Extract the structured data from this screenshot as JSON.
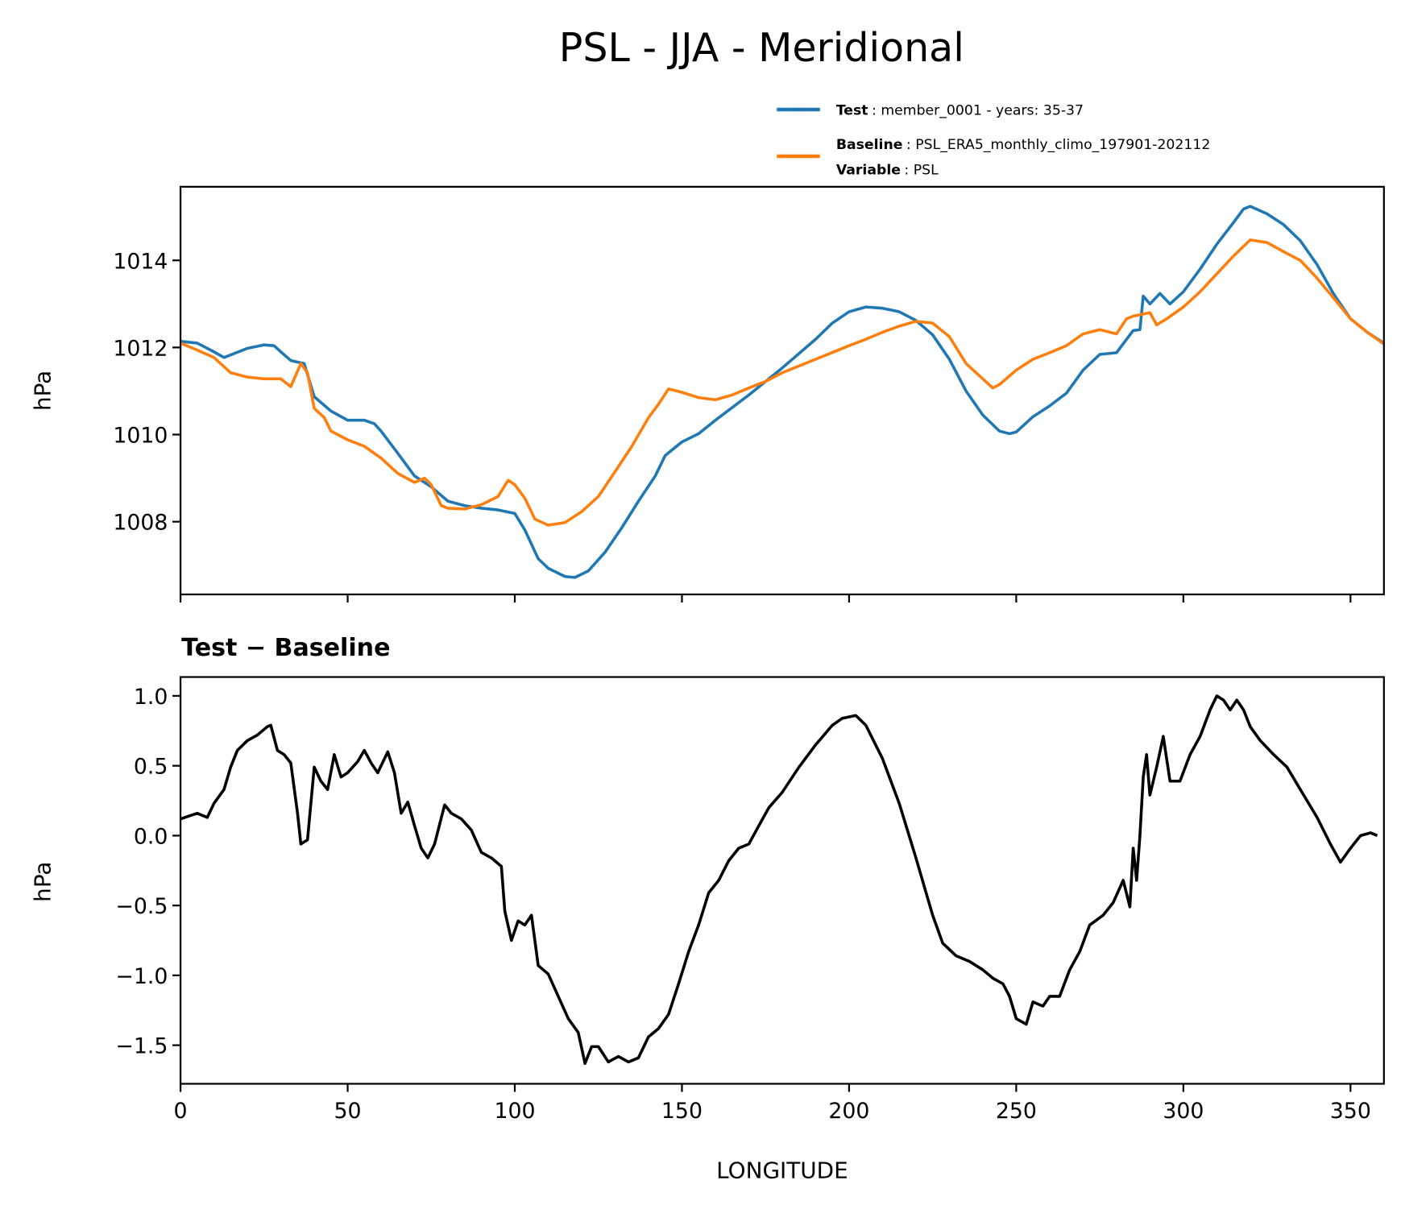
{
  "title": "PSL - JJA - Meridional",
  "colors": {
    "test": "#1f77b4",
    "baseline": "#ff7f0e",
    "diff": "#000000"
  },
  "legend": {
    "test_label": "Test",
    "test_value": ": member_0001 - years: 35-37",
    "baseline_label": "Baseline",
    "baseline_value": ": PSL_ERA5_monthly_climo_197901-202112",
    "variable_label": "Variable",
    "variable_value": ": PSL"
  },
  "chart_data": [
    {
      "type": "line",
      "title": "",
      "xlabel": "",
      "ylabel": "hPa",
      "xlim": [
        0,
        360
      ],
      "ylim": [
        1006.33,
        1015.69
      ],
      "xticks": [
        0,
        50,
        100,
        150,
        200,
        250,
        300,
        350
      ],
      "yticks": [
        1008,
        1010,
        1012,
        1014
      ],
      "ytick_labels": [
        "1008",
        "1010",
        "1012",
        "1014"
      ],
      "legend_placement": "above-top-right",
      "series": [
        {
          "name": "Test",
          "color_key": "test",
          "x": [
            0,
            5,
            10,
            13,
            20,
            25,
            28,
            30,
            33,
            37,
            40,
            45,
            50,
            55,
            58,
            60,
            65,
            70,
            75,
            80,
            85,
            90,
            95,
            100,
            103,
            107,
            110,
            115,
            118,
            122,
            127,
            132,
            137,
            142,
            145,
            150,
            155,
            160,
            170,
            180,
            190,
            195,
            200,
            205,
            210,
            215,
            220,
            225,
            230,
            235,
            240,
            245,
            248,
            250,
            255,
            260,
            265,
            270,
            275,
            280,
            285,
            287,
            288,
            290,
            293,
            296,
            300,
            305,
            310,
            315,
            318,
            320,
            325,
            330,
            335,
            340,
            345,
            350,
            355,
            360
          ],
          "y": [
            1012.14,
            1012.1,
            1011.9,
            1011.77,
            1011.98,
            1012.06,
            1012.04,
            1011.9,
            1011.7,
            1011.63,
            1010.87,
            1010.54,
            1010.33,
            1010.33,
            1010.25,
            1010.08,
            1009.57,
            1009.05,
            1008.8,
            1008.47,
            1008.37,
            1008.31,
            1008.27,
            1008.19,
            1007.81,
            1007.15,
            1006.93,
            1006.74,
            1006.72,
            1006.87,
            1007.3,
            1007.86,
            1008.47,
            1009.05,
            1009.52,
            1009.83,
            1010.02,
            1010.33,
            1010.91,
            1011.53,
            1012.19,
            1012.56,
            1012.82,
            1012.93,
            1012.9,
            1012.82,
            1012.62,
            1012.29,
            1011.73,
            1011.0,
            1010.45,
            1010.08,
            1010.02,
            1010.06,
            1010.41,
            1010.66,
            1010.95,
            1011.48,
            1011.84,
            1011.88,
            1012.39,
            1012.41,
            1013.18,
            1013.0,
            1013.24,
            1013.0,
            1013.28,
            1013.8,
            1014.37,
            1014.87,
            1015.18,
            1015.24,
            1015.07,
            1014.82,
            1014.45,
            1013.9,
            1013.22,
            1012.66,
            1012.35,
            1012.1
          ]
        },
        {
          "name": "Baseline",
          "color_key": "baseline",
          "x": [
            0,
            5,
            10,
            15,
            20,
            25,
            30,
            33,
            36,
            38,
            40,
            43,
            45,
            50,
            55,
            60,
            65,
            70,
            73,
            75,
            78,
            80,
            85,
            90,
            95,
            98,
            100,
            103,
            106,
            110,
            115,
            120,
            125,
            130,
            135,
            140,
            143,
            146,
            150,
            155,
            160,
            165,
            170,
            175,
            180,
            190,
            200,
            205,
            210,
            215,
            220,
            225,
            230,
            235,
            240,
            243,
            245,
            250,
            255,
            260,
            265,
            270,
            275,
            280,
            283,
            285,
            290,
            292,
            295,
            300,
            305,
            310,
            315,
            320,
            325,
            330,
            335,
            340,
            345,
            350,
            355,
            360
          ],
          "y": [
            1012.1,
            1011.94,
            1011.77,
            1011.42,
            1011.32,
            1011.28,
            1011.28,
            1011.1,
            1011.63,
            1011.42,
            1010.6,
            1010.39,
            1010.08,
            1009.88,
            1009.73,
            1009.46,
            1009.11,
            1008.9,
            1009.0,
            1008.85,
            1008.37,
            1008.31,
            1008.29,
            1008.39,
            1008.58,
            1008.95,
            1008.85,
            1008.54,
            1008.06,
            1007.92,
            1007.98,
            1008.23,
            1008.58,
            1009.15,
            1009.73,
            1010.39,
            1010.7,
            1011.05,
            1010.97,
            1010.85,
            1010.8,
            1010.91,
            1011.07,
            1011.22,
            1011.42,
            1011.73,
            1012.04,
            1012.19,
            1012.35,
            1012.49,
            1012.6,
            1012.56,
            1012.25,
            1011.63,
            1011.28,
            1011.07,
            1011.15,
            1011.48,
            1011.73,
            1011.88,
            1012.04,
            1012.31,
            1012.41,
            1012.31,
            1012.66,
            1012.72,
            1012.8,
            1012.52,
            1012.66,
            1012.93,
            1013.28,
            1013.69,
            1014.1,
            1014.47,
            1014.41,
            1014.2,
            1014.0,
            1013.59,
            1013.13,
            1012.66,
            1012.35,
            1012.08
          ]
        }
      ]
    },
    {
      "type": "line",
      "title": "Test − Baseline",
      "xlabel": "LONGITUDE",
      "ylabel": "hPa",
      "xlim": [
        0,
        360
      ],
      "ylim": [
        -1.776,
        1.135
      ],
      "xticks": [
        0,
        50,
        100,
        150,
        200,
        250,
        300,
        350
      ],
      "xtick_labels": [
        "0",
        "50",
        "100",
        "150",
        "200",
        "250",
        "300",
        "350"
      ],
      "yticks": [
        1.0,
        0.5,
        0.0,
        -0.5,
        -1.0,
        -1.5
      ],
      "ytick_labels": [
        "1.0",
        "0.5",
        "0.0",
        "−0.5",
        "−1.0",
        "−1.5"
      ],
      "series": [
        {
          "name": "Test - Baseline",
          "color_key": "diff",
          "x": [
            0,
            5,
            8,
            10,
            13,
            15,
            17,
            20,
            23,
            26,
            27,
            29,
            31,
            33,
            35,
            36,
            38,
            40,
            42,
            44,
            46,
            48,
            50,
            53,
            55,
            57,
            59,
            62,
            64,
            66,
            68,
            70,
            72,
            74,
            76,
            79,
            81,
            84,
            87,
            90,
            93,
            96,
            97,
            99,
            101,
            103,
            105,
            107,
            110,
            113,
            116,
            119,
            121,
            123,
            125,
            128,
            131,
            134,
            137,
            140,
            143,
            146,
            149,
            152,
            155,
            158,
            161,
            164,
            167,
            170,
            173,
            176,
            180,
            185,
            190,
            195,
            198,
            202,
            205,
            210,
            215,
            220,
            225,
            228,
            232,
            236,
            240,
            243,
            246,
            248,
            250,
            253,
            255,
            258,
            260,
            263,
            266,
            269,
            272,
            276,
            279,
            282,
            284,
            285,
            286,
            287,
            288,
            289,
            290,
            292,
            294,
            296,
            299,
            302,
            305,
            308,
            310,
            312,
            314,
            316,
            318,
            320,
            323,
            327,
            331,
            335,
            340,
            344,
            347,
            350,
            353,
            356,
            358
          ],
          "y": [
            0.12,
            0.16,
            0.13,
            0.23,
            0.33,
            0.49,
            0.61,
            0.68,
            0.72,
            0.78,
            0.79,
            0.61,
            0.58,
            0.52,
            0.16,
            -0.06,
            -0.03,
            0.49,
            0.39,
            0.33,
            0.58,
            0.42,
            0.45,
            0.53,
            0.61,
            0.52,
            0.45,
            0.6,
            0.45,
            0.16,
            0.24,
            0.07,
            -0.09,
            -0.16,
            -0.06,
            0.22,
            0.16,
            0.12,
            0.04,
            -0.12,
            -0.16,
            -0.22,
            -0.54,
            -0.75,
            -0.61,
            -0.64,
            -0.57,
            -0.93,
            -0.99,
            -1.15,
            -1.31,
            -1.41,
            -1.63,
            -1.51,
            -1.51,
            -1.62,
            -1.58,
            -1.62,
            -1.59,
            -1.44,
            -1.38,
            -1.28,
            -1.06,
            -0.83,
            -0.64,
            -0.41,
            -0.32,
            -0.18,
            -0.09,
            -0.06,
            0.07,
            0.2,
            0.31,
            0.49,
            0.65,
            0.79,
            0.84,
            0.86,
            0.79,
            0.55,
            0.23,
            -0.16,
            -0.57,
            -0.77,
            -0.86,
            -0.9,
            -0.96,
            -1.02,
            -1.06,
            -1.15,
            -1.31,
            -1.35,
            -1.19,
            -1.22,
            -1.15,
            -1.15,
            -0.96,
            -0.83,
            -0.64,
            -0.57,
            -0.48,
            -0.32,
            -0.51,
            -0.09,
            -0.32,
            0.0,
            0.42,
            0.58,
            0.29,
            0.49,
            0.71,
            0.39,
            0.39,
            0.58,
            0.71,
            0.9,
            1.0,
            0.97,
            0.9,
            0.97,
            0.9,
            0.78,
            0.68,
            0.58,
            0.49,
            0.33,
            0.13,
            -0.06,
            -0.19,
            -0.09,
            0.0,
            0.02,
            0.0
          ]
        }
      ]
    }
  ]
}
